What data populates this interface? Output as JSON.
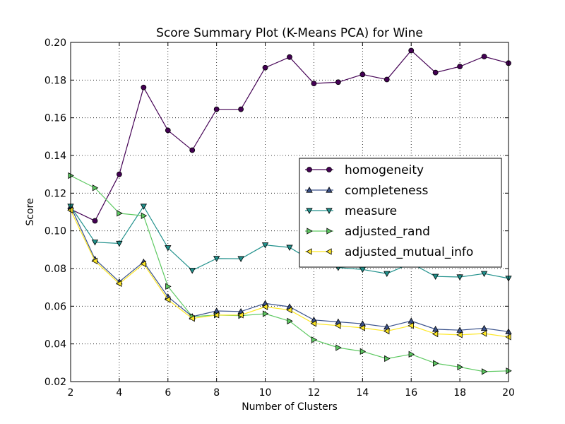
{
  "chart_data": {
    "type": "line",
    "title": "Score Summary Plot (K-Means PCA) for Wine",
    "xlabel": "Number of Clusters",
    "ylabel": "Score",
    "xlim": [
      2,
      20
    ],
    "ylim": [
      0.02,
      0.2
    ],
    "x_ticks": [
      "2",
      "4",
      "6",
      "8",
      "10",
      "12",
      "14",
      "16",
      "18",
      "20"
    ],
    "y_ticks": [
      "0.02",
      "0.04",
      "0.06",
      "0.08",
      "0.10",
      "0.12",
      "0.14",
      "0.16",
      "0.18",
      "0.20"
    ],
    "grid": true,
    "legend_position": "center-right",
    "x": [
      2,
      3,
      4,
      5,
      6,
      7,
      8,
      9,
      10,
      11,
      12,
      13,
      14,
      15,
      16,
      17,
      18,
      19,
      20
    ],
    "series": [
      {
        "name": "homogeneity",
        "marker": "circle",
        "color": "#440154",
        "values": [
          0.1115,
          0.1053,
          0.13,
          0.1761,
          0.1533,
          0.1428,
          0.1645,
          0.1645,
          0.1866,
          0.1922,
          0.1782,
          0.1789,
          0.183,
          0.1803,
          0.1957,
          0.184,
          0.1872,
          0.1925,
          0.189
        ]
      },
      {
        "name": "completeness",
        "marker": "triangle-up",
        "color": "#3b528b",
        "values": [
          0.113,
          0.085,
          0.073,
          0.0835,
          0.065,
          0.0545,
          0.0575,
          0.0572,
          0.0615,
          0.0597,
          0.0527,
          0.0517,
          0.0507,
          0.049,
          0.0522,
          0.0478,
          0.0473,
          0.0483,
          0.0465
        ]
      },
      {
        "name": "measure",
        "marker": "triangle-down",
        "color": "#21918c",
        "values": [
          0.113,
          0.094,
          0.0933,
          0.113,
          0.091,
          0.079,
          0.0853,
          0.0852,
          0.0925,
          0.0912,
          0.0835,
          0.0805,
          0.0795,
          0.0773,
          0.0828,
          0.0758,
          0.0755,
          0.0773,
          0.0748
        ]
      },
      {
        "name": "adjusted_rand",
        "marker": "triangle-right",
        "color": "#5ec962",
        "values": [
          0.1293,
          0.1228,
          0.1093,
          0.108,
          0.0705,
          0.0545,
          0.0553,
          0.055,
          0.056,
          0.0521,
          0.0422,
          0.038,
          0.036,
          0.0322,
          0.0345,
          0.0297,
          0.0277,
          0.0253,
          0.0257
        ]
      },
      {
        "name": "adjusted_mutual_info",
        "marker": "triangle-left",
        "color": "#fde725",
        "values": [
          0.111,
          0.084,
          0.072,
          0.0825,
          0.0635,
          0.0535,
          0.0553,
          0.0553,
          0.0597,
          0.058,
          0.0508,
          0.0497,
          0.0485,
          0.0468,
          0.0497,
          0.0453,
          0.0448,
          0.0455,
          0.0437
        ]
      }
    ]
  }
}
